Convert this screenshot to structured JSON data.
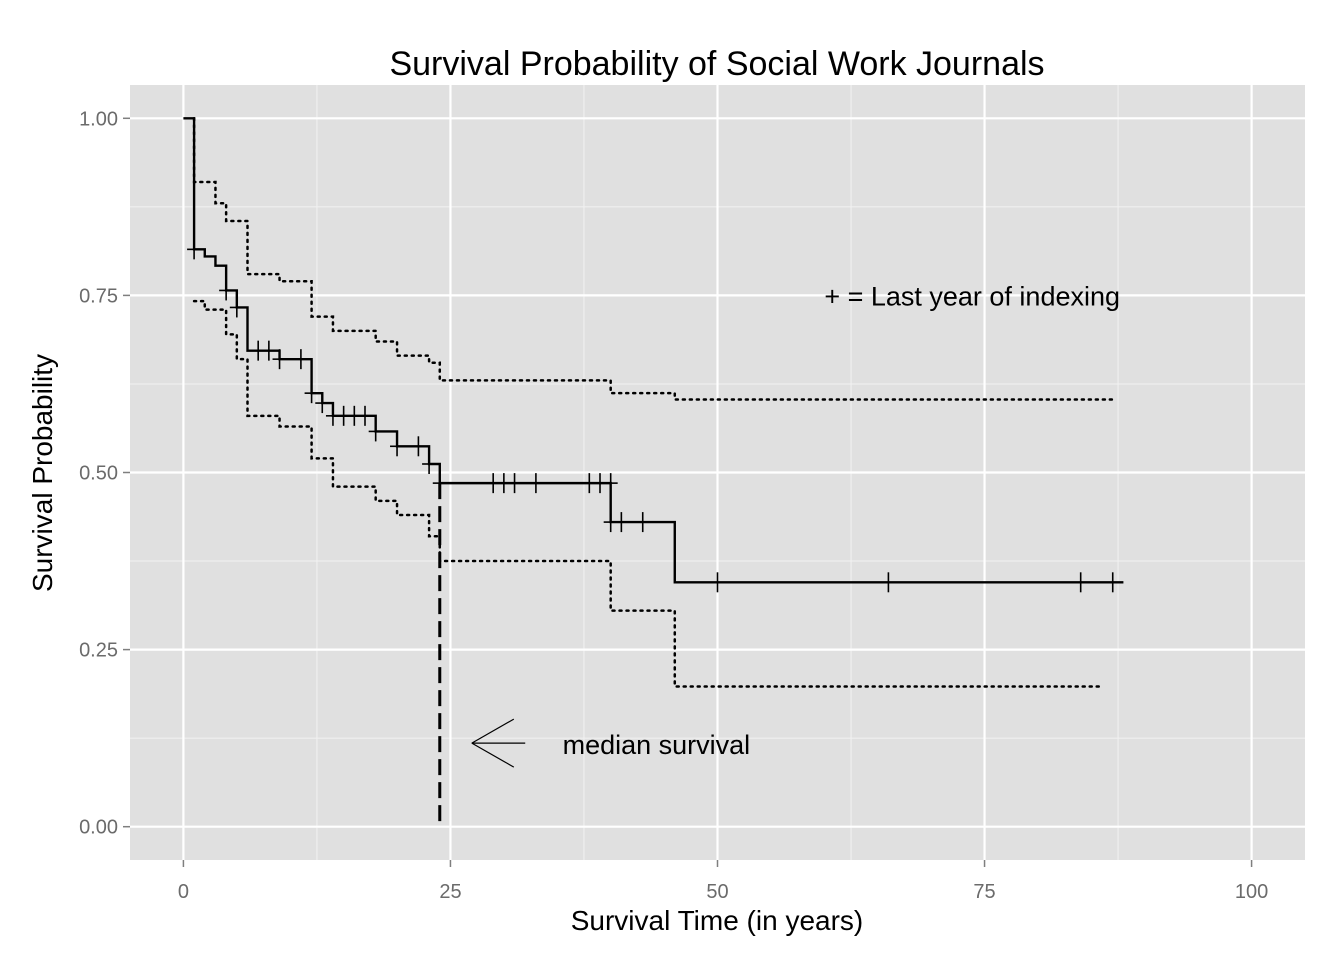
{
  "chart_data": {
    "type": "line",
    "title": "Survival Probability of Social Work Journals",
    "xlabel": "Survival Time (in years)",
    "ylabel": "Survival Probability",
    "xlim": [
      -5,
      105
    ],
    "ylim": [
      -0.047,
      1.047
    ],
    "x_ticks": [
      0,
      25,
      50,
      75,
      100
    ],
    "x_tick_labels": [
      "0",
      "25",
      "50",
      "75",
      "100"
    ],
    "y_ticks": [
      0,
      0.25,
      0.5,
      0.75,
      1.0
    ],
    "y_tick_labels": [
      "0.00",
      "0.25",
      "0.50",
      "0.75",
      "1.00"
    ],
    "grid": true,
    "background": "#e0e0e0",
    "grid_color": "#ffffff",
    "series": [
      {
        "role": "estimate",
        "style": "solid",
        "steps": [
          [
            0,
            1.0
          ],
          [
            1,
            0.815
          ],
          [
            2,
            0.805
          ],
          [
            3,
            0.792
          ],
          [
            4,
            0.757
          ],
          [
            5,
            0.733
          ],
          [
            6,
            0.672
          ],
          [
            9,
            0.66
          ],
          [
            12,
            0.612
          ],
          [
            13,
            0.598
          ],
          [
            14,
            0.58
          ],
          [
            18,
            0.558
          ],
          [
            20,
            0.537
          ],
          [
            23,
            0.512
          ],
          [
            24,
            0.485
          ],
          [
            40,
            0.43
          ],
          [
            46,
            0.345
          ],
          [
            88,
            0.345
          ]
        ],
        "censor_marks": [
          [
            1,
            0.815
          ],
          [
            4,
            0.757
          ],
          [
            5,
            0.733
          ],
          [
            7,
            0.672
          ],
          [
            8,
            0.672
          ],
          [
            9,
            0.66
          ],
          [
            11,
            0.66
          ],
          [
            12,
            0.612
          ],
          [
            13,
            0.598
          ],
          [
            14,
            0.58
          ],
          [
            15,
            0.58
          ],
          [
            16,
            0.58
          ],
          [
            17,
            0.58
          ],
          [
            18,
            0.558
          ],
          [
            20,
            0.537
          ],
          [
            22,
            0.537
          ],
          [
            23,
            0.512
          ],
          [
            24,
            0.485
          ],
          [
            29,
            0.485
          ],
          [
            30,
            0.485
          ],
          [
            31,
            0.485
          ],
          [
            33,
            0.485
          ],
          [
            38,
            0.485
          ],
          [
            39,
            0.485
          ],
          [
            40,
            0.485
          ],
          [
            40,
            0.43
          ],
          [
            41,
            0.43
          ],
          [
            43,
            0.43
          ],
          [
            50,
            0.345
          ],
          [
            66,
            0.345
          ],
          [
            84,
            0.345
          ],
          [
            87,
            0.345
          ]
        ]
      },
      {
        "role": "upper confidence bound",
        "style": "dotted",
        "steps": [
          [
            1,
            1.0
          ],
          [
            1,
            0.91
          ],
          [
            3,
            0.88
          ],
          [
            4,
            0.855
          ],
          [
            6,
            0.83
          ],
          [
            6,
            0.78
          ],
          [
            9,
            0.77
          ],
          [
            12,
            0.745
          ],
          [
            12,
            0.72
          ],
          [
            14,
            0.7
          ],
          [
            18,
            0.685
          ],
          [
            20,
            0.665
          ],
          [
            23,
            0.655
          ],
          [
            24,
            0.63
          ],
          [
            40,
            0.612
          ],
          [
            46,
            0.603
          ],
          [
            87,
            0.603
          ]
        ]
      },
      {
        "role": "lower confidence bound",
        "style": "dotted",
        "steps": [
          [
            1,
            0.742
          ],
          [
            2,
            0.73
          ],
          [
            4,
            0.695
          ],
          [
            5,
            0.66
          ],
          [
            6,
            0.635
          ],
          [
            6,
            0.58
          ],
          [
            9,
            0.565
          ],
          [
            12,
            0.55
          ],
          [
            12,
            0.52
          ],
          [
            14,
            0.48
          ],
          [
            18,
            0.46
          ],
          [
            20,
            0.44
          ],
          [
            23,
            0.41
          ],
          [
            24,
            0.375
          ],
          [
            40,
            0.305
          ],
          [
            46,
            0.198
          ],
          [
            86,
            0.198
          ]
        ]
      }
    ],
    "median_line": {
      "x": 24,
      "y_top": 0.485,
      "style": "dashed"
    },
    "annotations": [
      {
        "text": "+ = Last year of indexing",
        "x": 60,
        "y": 0.75
      },
      {
        "text": "median survival",
        "x": 35.5,
        "y": 0.117
      }
    ],
    "arrow": {
      "from_x": 32,
      "to_x": 27,
      "y": 0.118
    }
  }
}
